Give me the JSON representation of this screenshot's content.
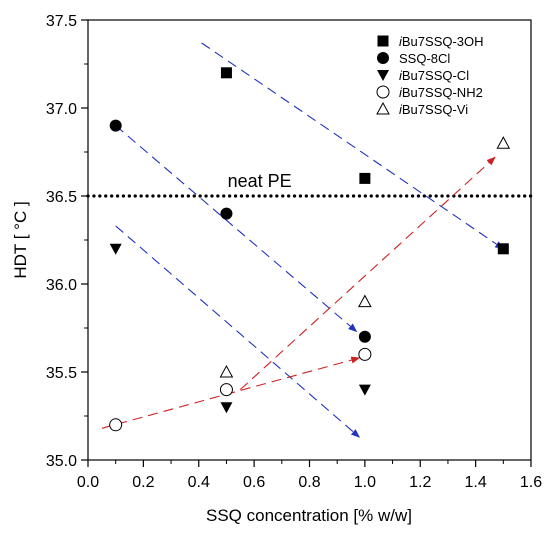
{
  "chart_data": {
    "type": "scatter",
    "xlabel": "SSQ concentration [% w/w]",
    "ylabel": "HDT [ °C ]",
    "xlim": [
      0.0,
      1.6
    ],
    "ylim": [
      35.0,
      37.5
    ],
    "xticks": [
      "0.0",
      "0.2",
      "0.4",
      "0.6",
      "0.8",
      "1.0",
      "1.2",
      "1.4",
      "1.6"
    ],
    "yticks": [
      "35.0",
      "35.5",
      "36.0",
      "36.5",
      "37.0",
      "37.5"
    ],
    "grid": false,
    "legend_position": "top-right",
    "series": [
      {
        "name": "iBu7SSQ-3OH",
        "marker": "square-filled",
        "x": [
          0.5,
          1.0,
          1.5
        ],
        "y": [
          37.2,
          36.6,
          36.2
        ]
      },
      {
        "name": "SSQ-8Cl",
        "marker": "circle-filled",
        "x": [
          0.1,
          0.5,
          1.0
        ],
        "y": [
          36.9,
          36.4,
          35.7
        ]
      },
      {
        "name": "iBu7SSQ-Cl",
        "marker": "triangle-down-filled",
        "x": [
          0.1,
          0.5,
          1.0
        ],
        "y": [
          36.2,
          35.3,
          35.4
        ]
      },
      {
        "name": "iBu7SSQ-NH2",
        "marker": "circle-open",
        "x": [
          0.1,
          0.5,
          1.0
        ],
        "y": [
          35.2,
          35.4,
          35.6
        ]
      },
      {
        "name": "iBu7SSQ-Vi",
        "marker": "triangle-up-open",
        "x": [
          0.5,
          1.0,
          1.5
        ],
        "y": [
          35.5,
          35.9,
          36.8
        ]
      }
    ],
    "reference_line": {
      "label": "neat PE",
      "y": 36.5,
      "style": "dotted"
    },
    "trend_arrows": [
      {
        "color": "#2233bb",
        "from": [
          0.41,
          37.37
        ],
        "to": [
          1.5,
          36.2
        ]
      },
      {
        "color": "#2233bb",
        "from": [
          0.1,
          36.9
        ],
        "to": [
          0.97,
          35.73
        ]
      },
      {
        "color": "#2233bb",
        "from": [
          0.1,
          36.33
        ],
        "to": [
          0.98,
          35.13
        ]
      },
      {
        "color": "#cc2222",
        "from": [
          0.05,
          35.18
        ],
        "to": [
          0.98,
          35.58
        ]
      },
      {
        "color": "#cc2222",
        "from": [
          0.55,
          35.4
        ],
        "to": [
          1.47,
          36.72
        ]
      }
    ]
  }
}
